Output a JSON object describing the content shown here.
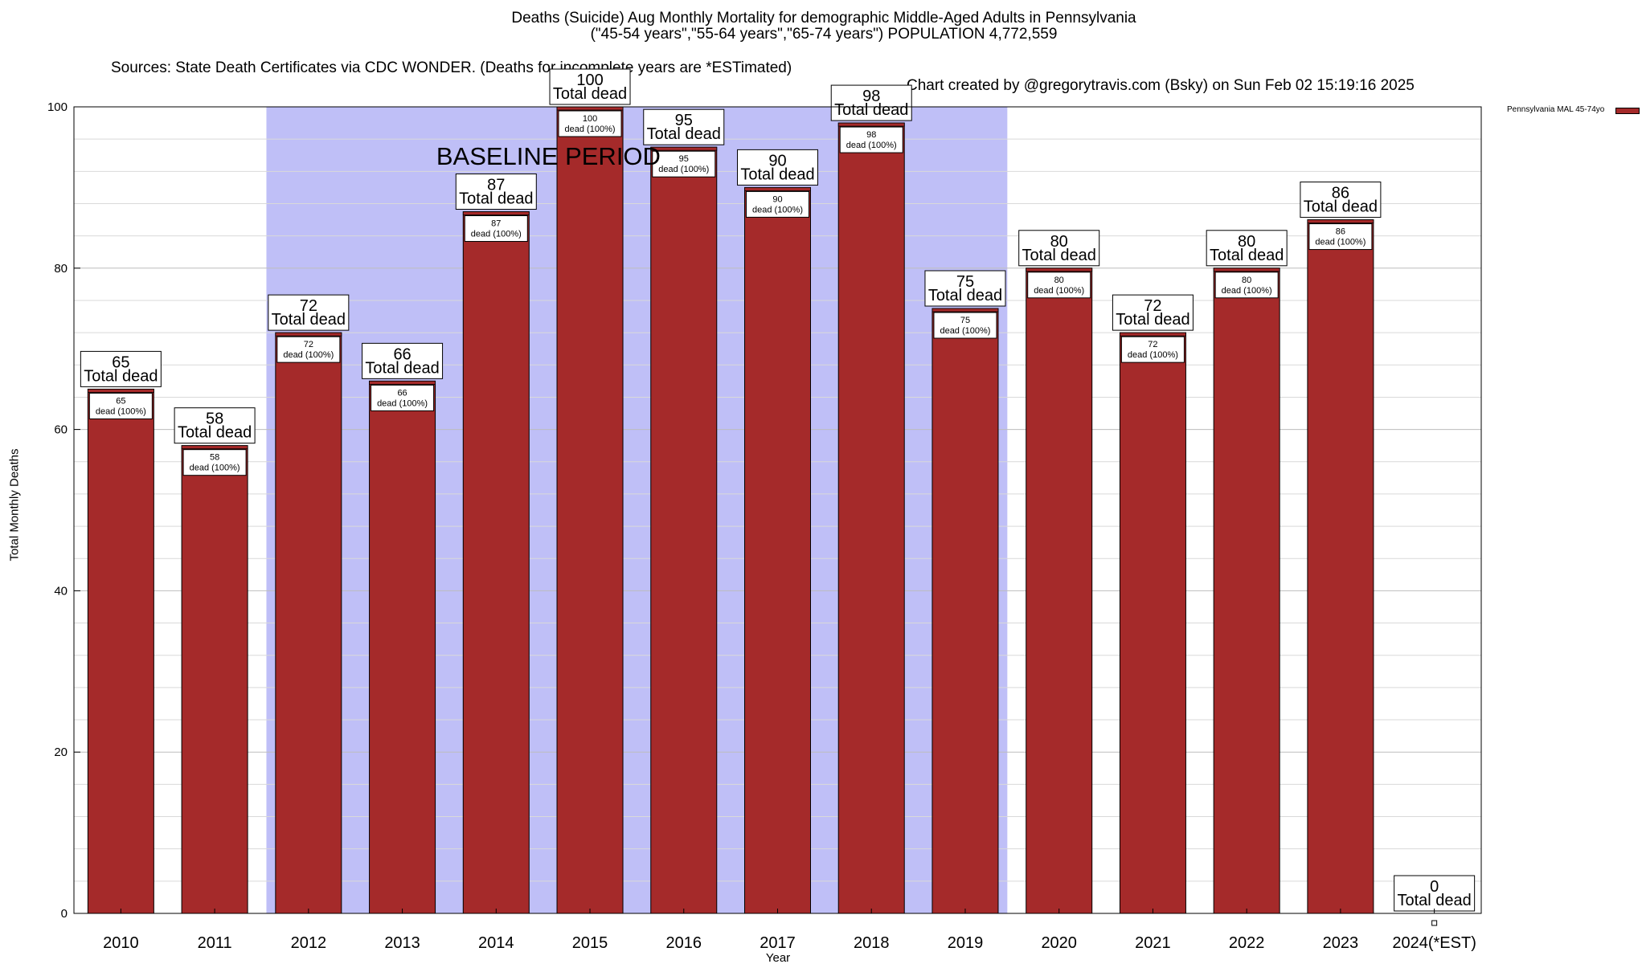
{
  "title_line1": "Deaths (Suicide) Aug Monthly Mortality for demographic Middle-Aged Adults in Pennsylvania",
  "title_line2": "(\"45-54 years\",\"55-64 years\",\"65-74 years\") POPULATION 4,772,559",
  "title_line3_source": "Sources: State Death Certificates via CDC WONDER. (Deaths for incomplete years are *ESTimated)",
  "title_line3_credit": "Chart created by @gregorytravis.com (Bsky) on Sun Feb 02 15:19:16 2025",
  "colors": {
    "bar": "#a52a2a",
    "baseline": "#bfbff7",
    "grid": "#d9d9d9"
  },
  "chart_data": {
    "type": "bar",
    "title": "Deaths (Suicide) Aug Monthly Mortality for demographic Middle-Aged Adults in Pennsylvania",
    "xlabel": "Year",
    "ylabel": "Total Monthly Deaths",
    "ylim": [
      0,
      100
    ],
    "yticks": [
      0,
      20,
      40,
      60,
      80,
      100
    ],
    "grid": true,
    "legend_position": "top-right",
    "categories": [
      "2010",
      "2011",
      "2012",
      "2013",
      "2014",
      "2015",
      "2016",
      "2017",
      "2018",
      "2019",
      "2020",
      "2021",
      "2022",
      "2023",
      "2024(*EST)"
    ],
    "series": [
      {
        "name": "Pennsylvania MAL 45-74yo",
        "values": [
          65,
          58,
          72,
          66,
          87,
          100,
          95,
          90,
          98,
          75,
          80,
          72,
          80,
          86,
          0
        ]
      }
    ],
    "total_label": "Total dead",
    "inner_label_suffix": "dead (100%)",
    "baseline_period": {
      "label": "BASELINE PERIOD",
      "start": "2012",
      "end": "2019"
    }
  }
}
